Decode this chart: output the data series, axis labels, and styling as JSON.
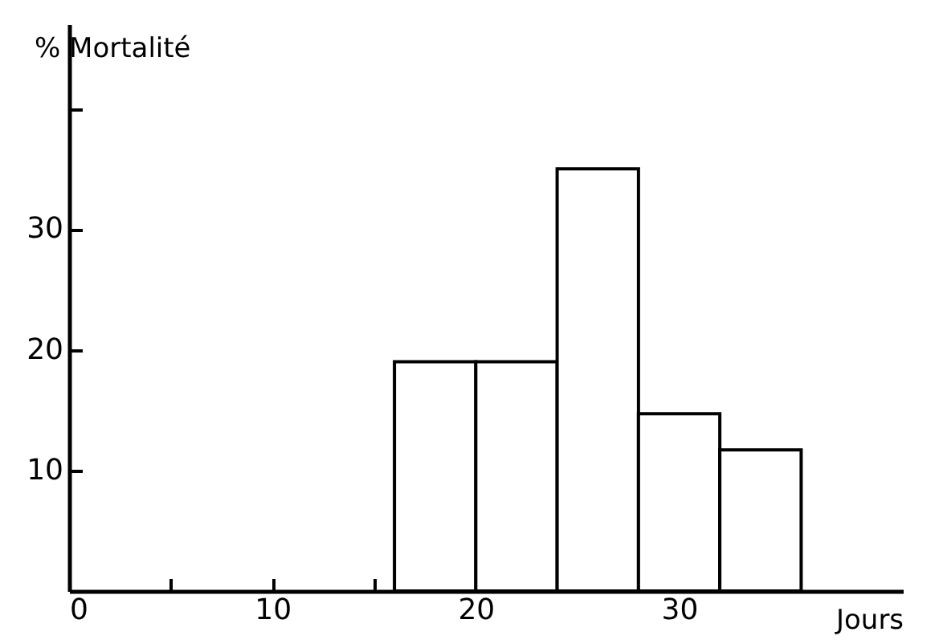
{
  "chart_data": {
    "type": "histogram",
    "xlabel": "Jours",
    "ylabel": "% Mortalité",
    "bins": [
      16,
      20,
      24,
      28,
      32,
      36
    ],
    "values": [
      19,
      19,
      35,
      14.7,
      11.7
    ],
    "color": "#ffffff",
    "xlim": [
      0,
      41
    ],
    "ylim": [
      0,
      47
    ],
    "xticks": [
      0,
      {
        "value": 5,
        "label": null
      },
      10,
      {
        "value": 15,
        "label": null
      },
      20,
      {
        "value": 25,
        "label": null
      },
      30,
      {
        "value": 35,
        "label": null
      }
    ],
    "yticks": [
      10,
      20,
      30,
      {
        "value": 40,
        "label": null
      }
    ],
    "grid": false
  }
}
